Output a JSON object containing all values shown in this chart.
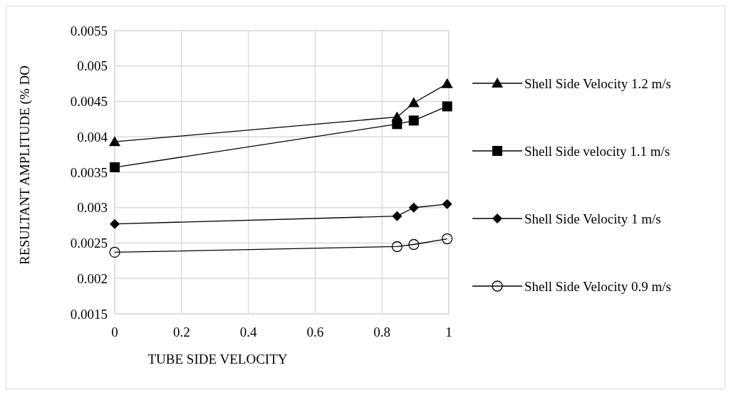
{
  "chart_data": {
    "type": "line",
    "xlabel": "TUBE SIDE VELOCITY",
    "ylabel": "RESULTANT AMPLITUDE (% DO",
    "xlim": [
      0,
      1
    ],
    "xticks": [
      0,
      0.2,
      0.4,
      0.6,
      0.8,
      1
    ],
    "ylim": [
      0.0015,
      0.0055
    ],
    "yticks": [
      0.0015,
      0.002,
      0.0025,
      0.003,
      0.0035,
      0.004,
      0.0045,
      0.005,
      0.0055
    ],
    "grid": true,
    "legend": "right",
    "line_style": "solid",
    "series": [
      {
        "name": "Shell Side Velocity 1.2 m/s",
        "color": "#000000",
        "marker": "triangle",
        "x": [
          0,
          0.845,
          0.895,
          0.995
        ],
        "values": [
          0.00393,
          0.00428,
          0.00448,
          0.00475
        ]
      },
      {
        "name": "Shell Side velocity 1.1 m/s",
        "color": "#000000",
        "marker": "square",
        "x": [
          0,
          0.845,
          0.895,
          0.995
        ],
        "values": [
          0.00357,
          0.00418,
          0.00423,
          0.00443
        ]
      },
      {
        "name": "Shell Side Velocity 1 m/s",
        "color": "#000000",
        "marker": "diamond",
        "x": [
          0,
          0.845,
          0.895,
          0.995
        ],
        "values": [
          0.00277,
          0.00288,
          0.003,
          0.00305
        ]
      },
      {
        "name": "Shell Side Velocity 0.9 m/s",
        "color": "#000000",
        "marker": "circle",
        "x": [
          0,
          0.845,
          0.895,
          0.995
        ],
        "values": [
          0.00237,
          0.00245,
          0.00248,
          0.00256
        ]
      }
    ]
  }
}
